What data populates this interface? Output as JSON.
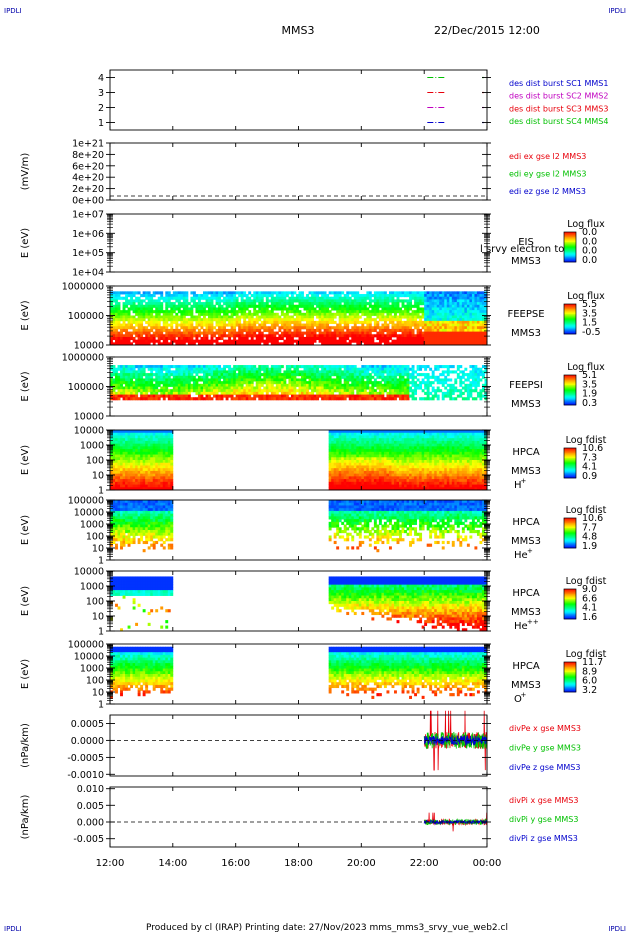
{
  "page": {
    "corner_marks": [
      "IPDLI",
      "IPDLI",
      "IPDLI",
      "IPDLI"
    ],
    "mission": "MMS3",
    "datetime": "22/Dec/2015 12:00",
    "footer": "Produced by cl (IRAP)   Printing date: 27/Nov/2023   mms_mms3_srvy_vue_web2.cl"
  },
  "colors": {
    "red": "#e8000b",
    "green": "#00c000",
    "blue": "#0000cc",
    "magenta": "#c000c0",
    "black": "#000000",
    "colorbar": [
      "#0000ff",
      "#00ffff",
      "#00ff00",
      "#ffff00",
      "#ff8000",
      "#ff0000"
    ]
  },
  "chart_data": [
    {
      "type": "line",
      "name": "burst-availability",
      "time_range_hours": [
        12,
        24
      ],
      "ylim": [
        0.5,
        4.5
      ],
      "yticks": [
        "1",
        "2",
        "3",
        "4"
      ],
      "legend": [
        {
          "label": "des dist burst SC1 MMS1",
          "color": "#0000cc"
        },
        {
          "label": "des dist burst SC2 MMS2",
          "color": "#c000c0"
        },
        {
          "label": "des dist burst SC3 MMS3",
          "color": "#e8000b"
        },
        {
          "label": "des dist burst SC4 MMS4",
          "color": "#00c000"
        }
      ],
      "segments": [
        {
          "level": 4,
          "color": "#00c000",
          "t": [
            22.1,
            22.7
          ]
        },
        {
          "level": 3,
          "color": "#e8000b",
          "t": [
            22.1,
            22.7
          ]
        },
        {
          "level": 2,
          "color": "#c000c0",
          "t": [
            22.1,
            22.7
          ]
        },
        {
          "level": 1,
          "color": "#0000cc",
          "t": [
            22.1,
            22.7
          ]
        }
      ]
    },
    {
      "type": "line",
      "name": "edi-electric-field",
      "ylabel": "(mV/m)",
      "yticks": [
        "1e+21",
        "8e+20",
        "6e+20",
        "4e+20",
        "2e+20",
        "0e+00"
      ],
      "legend": [
        {
          "label": "edi ex gse l2 MMS3",
          "color": "#e8000b"
        },
        {
          "label": "edi ey gse l2 MMS3",
          "color": "#00c000"
        },
        {
          "label": "edi ez gse l2 MMS3",
          "color": "#0000cc"
        }
      ]
    },
    {
      "type": "heatmap",
      "name": "eis",
      "ylabel": "E (eV)",
      "yticks": [
        "1e+07",
        "1e+06",
        "1e+05",
        "1e+04"
      ],
      "instrument": "EIS",
      "spacecraft": "MMS3",
      "overlay_text": "l srvy electron to",
      "colorbar_title": "Log flux",
      "colorbar_ticks": [
        "0.0",
        "0.0",
        "0.0",
        "0.0"
      ],
      "fill": "none"
    },
    {
      "type": "heatmap",
      "name": "feeps-electrons",
      "ylabel": "E (eV)",
      "yticks": [
        "1000000",
        "100000",
        "10000"
      ],
      "instrument": "FEEPSE",
      "spacecraft": "MMS3",
      "colorbar_title": "Log flux",
      "colorbar_ticks": [
        "5.5",
        "3.5",
        "1.5",
        "-0.5"
      ],
      "fill": "feeps_e"
    },
    {
      "type": "heatmap",
      "name": "feeps-ions",
      "ylabel": "E (eV)",
      "yticks": [
        "1000000",
        "100000",
        "10000"
      ],
      "instrument": "FEEPSI",
      "spacecraft": "MMS3",
      "colorbar_title": "Log flux",
      "colorbar_ticks": [
        "5.1",
        "3.5",
        "1.9",
        "0.3"
      ],
      "fill": "feeps_i"
    },
    {
      "type": "heatmap",
      "name": "hpca-h",
      "ylabel": "E (eV)",
      "yticks": [
        "10000",
        "1000",
        "100",
        "10",
        "1"
      ],
      "instrument": "HPCA",
      "spacecraft": "MMS3",
      "species": "H",
      "species_sup": "+",
      "colorbar_title": "Log fdist",
      "colorbar_ticks": [
        "10.6",
        "7.3",
        "4.1",
        "0.9"
      ],
      "fill": "hpca_h"
    },
    {
      "type": "heatmap",
      "name": "hpca-he-plus",
      "ylabel": "E (eV)",
      "yticks": [
        "100000",
        "10000",
        "1000",
        "100",
        "10",
        "1"
      ],
      "instrument": "HPCA",
      "spacecraft": "MMS3",
      "species": "He",
      "species_sup": "+",
      "colorbar_title": "Log fdist",
      "colorbar_ticks": [
        "10.6",
        "7.7",
        "4.8",
        "1.9"
      ],
      "fill": "hpca_he1"
    },
    {
      "type": "heatmap",
      "name": "hpca-he-plusplus",
      "ylabel": "E (eV)",
      "yticks": [
        "10000",
        "1000",
        "100",
        "10",
        "1"
      ],
      "instrument": "HPCA",
      "spacecraft": "MMS3",
      "species": "He",
      "species_sup": "++",
      "colorbar_title": "Log fdist",
      "colorbar_ticks": [
        "9.0",
        "6.6",
        "4.1",
        "1.6"
      ],
      "fill": "hpca_he2"
    },
    {
      "type": "heatmap",
      "name": "hpca-o-plus",
      "ylabel": "E (eV)",
      "yticks": [
        "100000",
        "10000",
        "1000",
        "100",
        "10",
        "1"
      ],
      "instrument": "HPCA",
      "spacecraft": "MMS3",
      "species": "O",
      "species_sup": "+",
      "colorbar_title": "Log fdist",
      "colorbar_ticks": [
        "11.7",
        "8.9",
        "6.0",
        "3.2"
      ],
      "fill": "hpca_o"
    },
    {
      "type": "line",
      "name": "div-pe",
      "ylabel": "(nPa/km)",
      "yticks": [
        "0.0005",
        "0.0000",
        "-0.0005",
        "-0.0010"
      ],
      "ylim": [
        -0.00105,
        0.00075
      ],
      "zero_line": true,
      "data_start_hour": 22.0,
      "amplitude": 0.00025,
      "legend": [
        {
          "label": "divPe x gse MMS3",
          "color": "#e8000b"
        },
        {
          "label": "divPe y gse MMS3",
          "color": "#00c000"
        },
        {
          "label": "divPe z gse MMS3",
          "color": "#0000cc"
        }
      ]
    },
    {
      "type": "line",
      "name": "div-pi",
      "ylabel": "(nPa/km)",
      "yticks": [
        "0.010",
        "0.005",
        "0.000",
        "-0.005"
      ],
      "ylim": [
        -0.0075,
        0.0105
      ],
      "zero_line": true,
      "data_start_hour": 22.0,
      "amplitude": 0.0008,
      "legend": [
        {
          "label": "divPi x gse MMS3",
          "color": "#e8000b"
        },
        {
          "label": "divPi y gse MMS3",
          "color": "#00c000"
        },
        {
          "label": "divPi z gse MMS3",
          "color": "#0000cc"
        }
      ]
    }
  ],
  "time_axis": {
    "range_hours": [
      12,
      24
    ],
    "tick_hours": [
      12,
      14,
      16,
      18,
      20,
      22,
      24
    ],
    "labels": [
      "12:00",
      "14:00",
      "16:00",
      "18:00",
      "20:00",
      "22:00",
      "00:00"
    ]
  }
}
